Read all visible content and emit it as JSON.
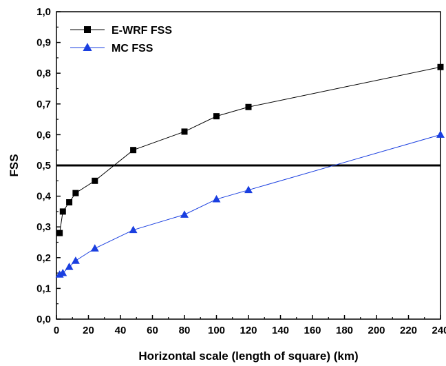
{
  "chart_data": {
    "type": "line",
    "xlabel": "Horizontal scale (length of square) (km)",
    "ylabel": "FSS",
    "xlim": [
      0,
      240
    ],
    "ylim": [
      0.0,
      1.0
    ],
    "x_ticks": [
      "0",
      "20",
      "40",
      "60",
      "80",
      "100",
      "120",
      "140",
      "160",
      "180",
      "200",
      "220",
      "240"
    ],
    "y_ticks": [
      "0,0",
      "0,1",
      "0,2",
      "0,3",
      "0,4",
      "0,5",
      "0,6",
      "0,7",
      "0,8",
      "0,9",
      "1,0"
    ],
    "grid": false,
    "legend_position": "top-left",
    "reference_line": {
      "y": 0.5,
      "color": "#000000"
    },
    "series": [
      {
        "name": "E-WRF FSS",
        "color": "#000000",
        "marker": "square",
        "x": [
          2,
          4,
          8,
          12,
          24,
          48,
          80,
          100,
          120,
          240
        ],
        "y": [
          0.28,
          0.35,
          0.38,
          0.41,
          0.45,
          0.55,
          0.61,
          0.66,
          0.69,
          0.82
        ]
      },
      {
        "name": "MC FSS",
        "color": "#1a3fe0",
        "marker": "triangle",
        "x": [
          2,
          4,
          8,
          12,
          24,
          48,
          80,
          100,
          120,
          240
        ],
        "y": [
          0.145,
          0.15,
          0.17,
          0.19,
          0.23,
          0.29,
          0.34,
          0.39,
          0.42,
          0.6
        ]
      }
    ]
  }
}
